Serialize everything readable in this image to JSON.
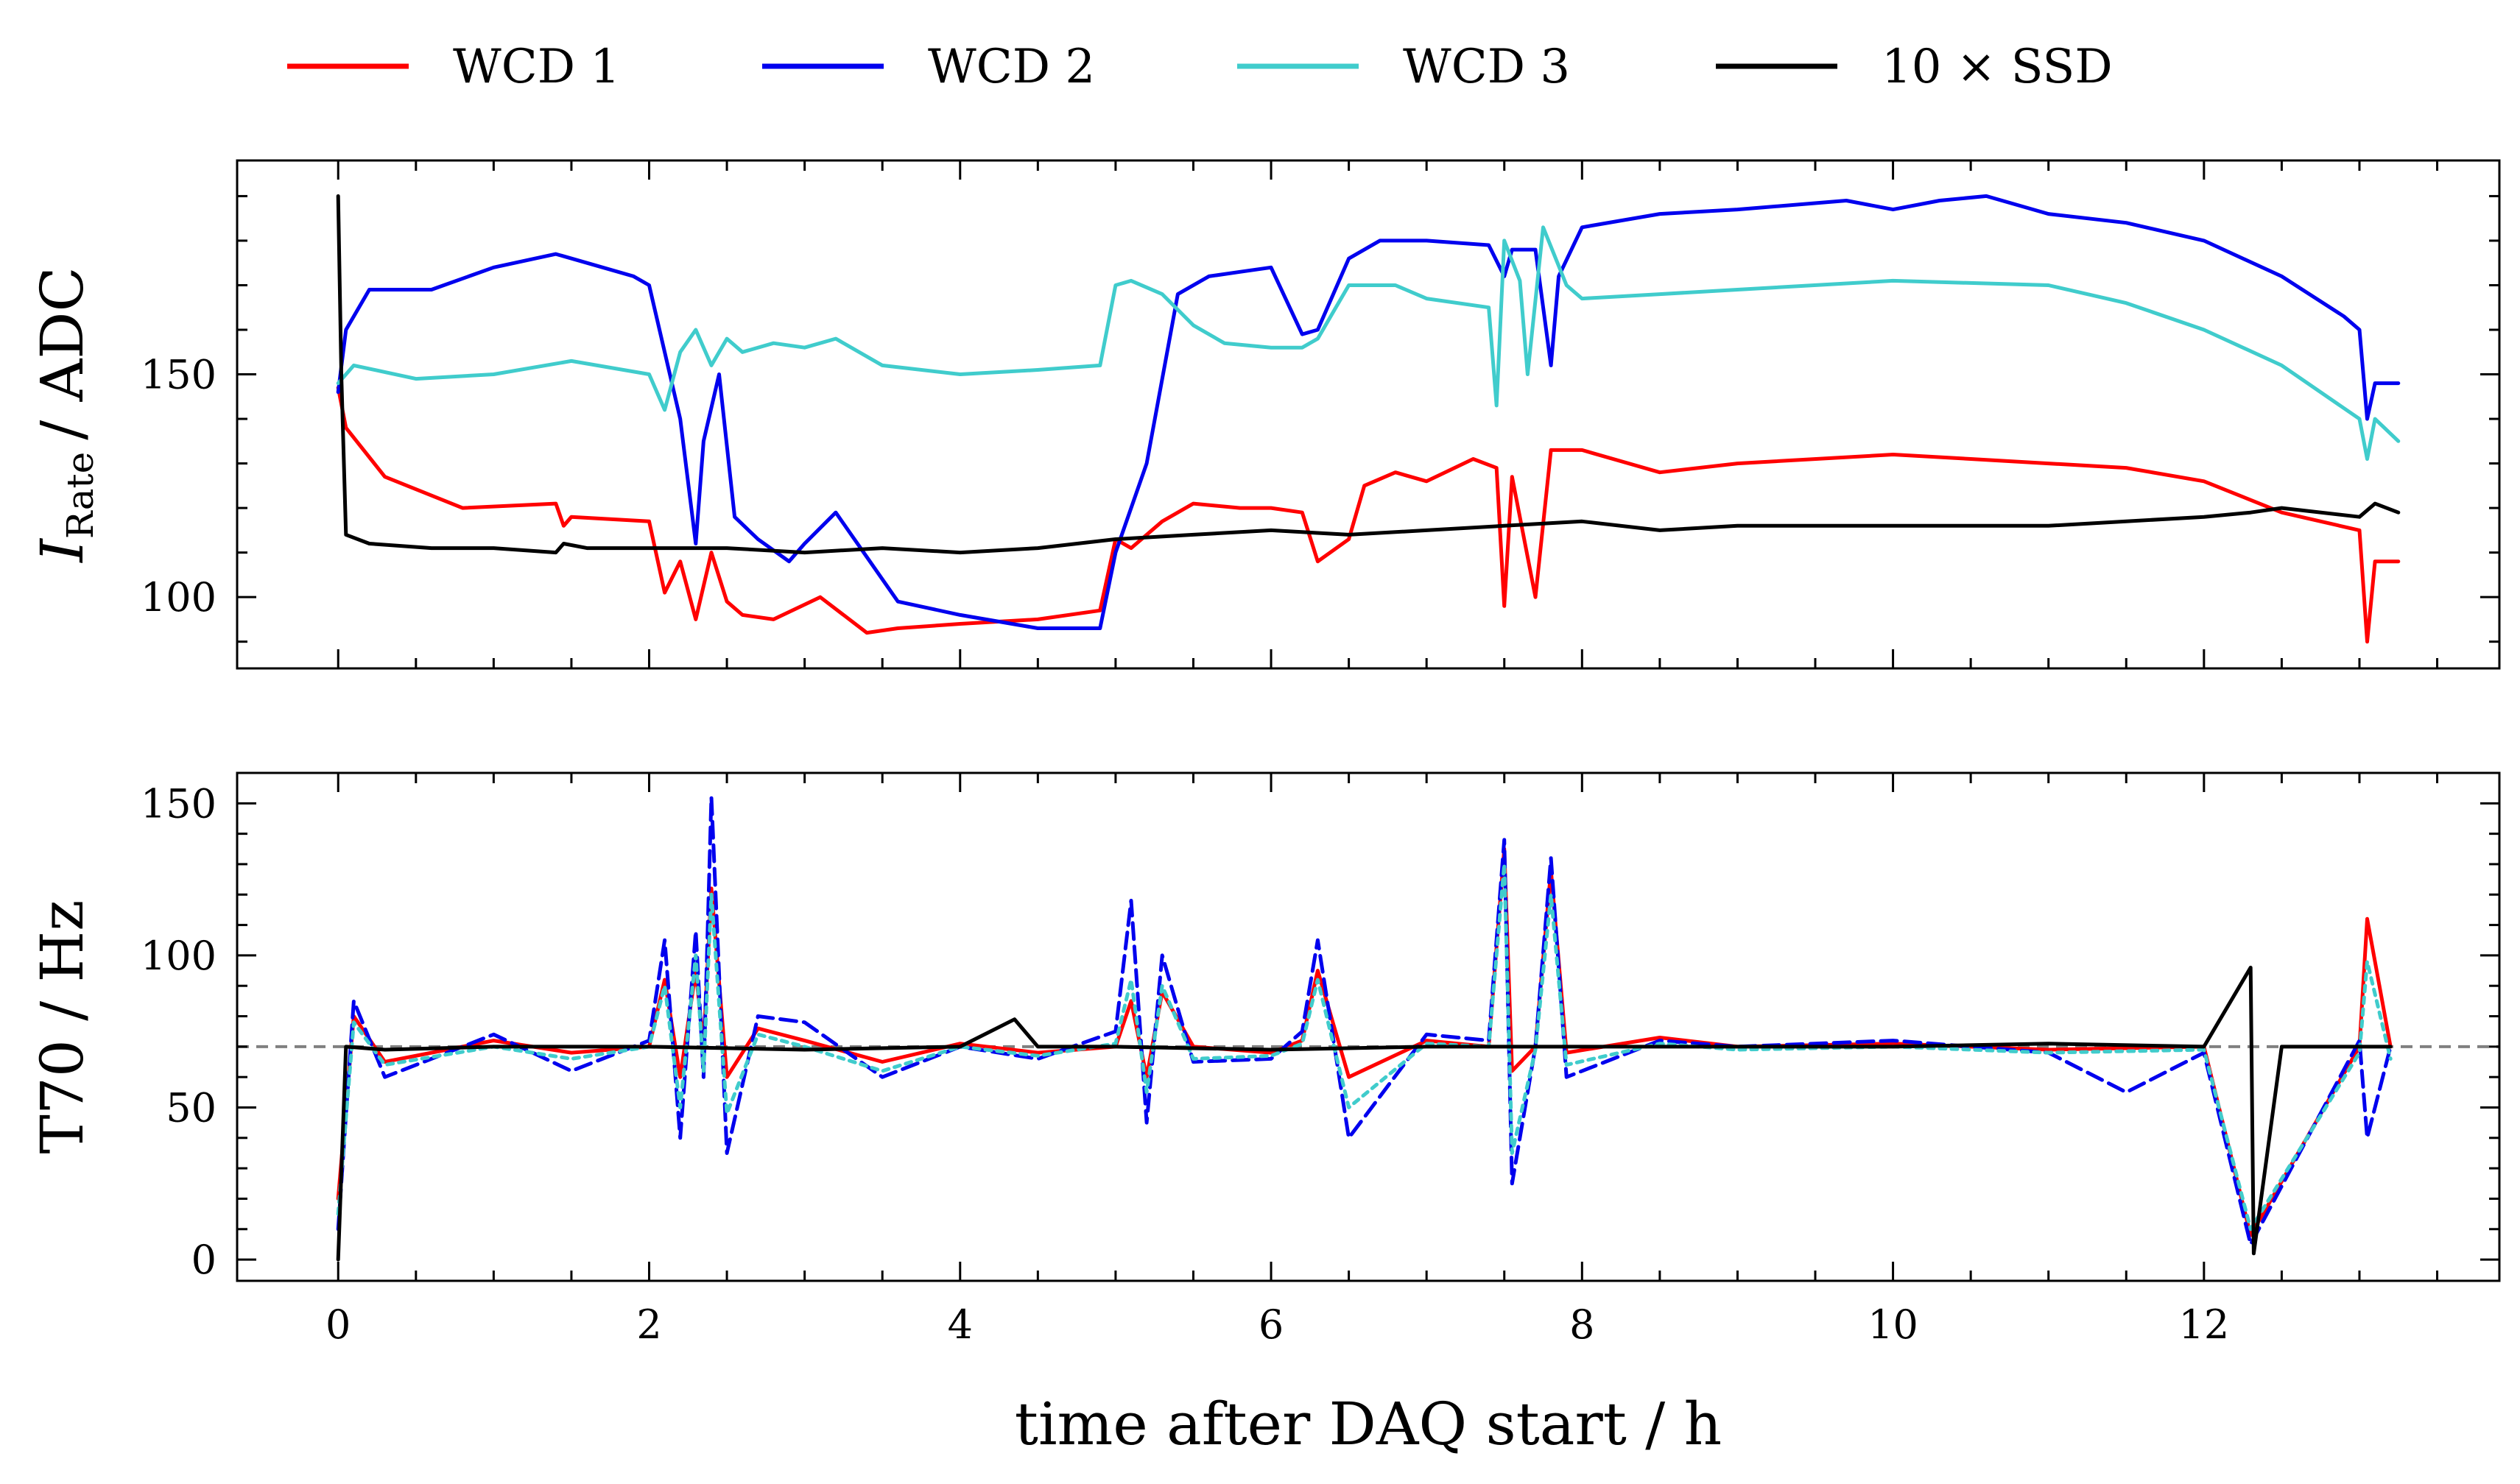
{
  "chart_data": [
    {
      "type": "line",
      "panel": "top",
      "xlabel": "",
      "ylabel_main": "I",
      "ylabel_sub": "Rate",
      "ylabel_unit": "/ ADC",
      "xlim": [
        -0.65,
        13.9
      ],
      "ylim": [
        84,
        198
      ],
      "xticks": [
        0,
        2,
        4,
        6,
        8,
        10,
        12
      ],
      "yticks": [
        100,
        150
      ],
      "grid": false,
      "legend_position": "top",
      "series": [
        {
          "name": "WCD 1",
          "color": "#ff0000",
          "x": [
            0,
            0.05,
            0.3,
            0.8,
            1.4,
            1.45,
            1.5,
            2.0,
            2.1,
            2.2,
            2.3,
            2.4,
            2.5,
            2.6,
            2.8,
            3.1,
            3.4,
            3.6,
            4.0,
            4.5,
            4.9,
            5.0,
            5.1,
            5.3,
            5.5,
            5.8,
            6.0,
            6.2,
            6.3,
            6.5,
            6.6,
            6.8,
            7.0,
            7.3,
            7.45,
            7.5,
            7.55,
            7.7,
            7.8,
            8.0,
            8.5,
            9.0,
            10.0,
            10.5,
            11.0,
            11.5,
            12.0,
            12.5,
            13.0,
            13.05,
            13.1,
            13.25
          ],
          "y": [
            147,
            138,
            127,
            120,
            121,
            116,
            118,
            117,
            101,
            108,
            95,
            110,
            99,
            96,
            95,
            100,
            92,
            93,
            94,
            95,
            97,
            113,
            111,
            117,
            121,
            120,
            120,
            119,
            108,
            113,
            125,
            128,
            126,
            131,
            129,
            98,
            127,
            100,
            133,
            133,
            128,
            130,
            132,
            131,
            130,
            129,
            126,
            119,
            115,
            90,
            108,
            108
          ]
        },
        {
          "name": "WCD 2",
          "color": "#0000ee",
          "x": [
            0,
            0.05,
            0.2,
            0.6,
            1.0,
            1.4,
            1.6,
            1.9,
            2.0,
            2.1,
            2.2,
            2.3,
            2.35,
            2.45,
            2.55,
            2.7,
            2.9,
            3.0,
            3.2,
            3.4,
            3.6,
            4.0,
            4.5,
            4.9,
            5.0,
            5.2,
            5.4,
            5.6,
            5.8,
            6.0,
            6.2,
            6.3,
            6.5,
            6.7,
            7.0,
            7.4,
            7.5,
            7.55,
            7.7,
            7.8,
            7.85,
            8.0,
            8.5,
            9.0,
            9.7,
            10.0,
            10.3,
            10.6,
            11.0,
            11.5,
            12.0,
            12.5,
            12.9,
            13.0,
            13.05,
            13.1,
            13.25
          ],
          "y": [
            146,
            160,
            169,
            169,
            174,
            177,
            175,
            172,
            170,
            155,
            140,
            112,
            135,
            150,
            118,
            113,
            108,
            112,
            119,
            109,
            99,
            96,
            93,
            93,
            110,
            130,
            168,
            172,
            173,
            174,
            159,
            160,
            176,
            180,
            180,
            179,
            172,
            178,
            178,
            152,
            172,
            183,
            186,
            187,
            189,
            187,
            189,
            190,
            186,
            184,
            180,
            172,
            163,
            160,
            140,
            148,
            148
          ]
        },
        {
          "name": "WCD 3",
          "color": "#40cccc",
          "x": [
            0,
            0.1,
            0.5,
            1.0,
            1.5,
            2.0,
            2.1,
            2.2,
            2.3,
            2.4,
            2.5,
            2.6,
            2.8,
            3.0,
            3.2,
            3.5,
            4.0,
            4.5,
            4.9,
            5.0,
            5.1,
            5.3,
            5.5,
            5.7,
            6.0,
            6.2,
            6.3,
            6.4,
            6.5,
            6.8,
            7.0,
            7.4,
            7.45,
            7.5,
            7.6,
            7.65,
            7.75,
            7.9,
            8.0,
            8.5,
            9.0,
            10.0,
            11.0,
            11.5,
            12.0,
            12.5,
            13.0,
            13.05,
            13.1,
            13.25
          ],
          "y": [
            148,
            152,
            149,
            150,
            153,
            150,
            142,
            155,
            160,
            152,
            158,
            155,
            157,
            156,
            158,
            152,
            150,
            151,
            152,
            170,
            171,
            168,
            161,
            157,
            156,
            156,
            158,
            164,
            170,
            170,
            167,
            165,
            143,
            180,
            171,
            150,
            183,
            170,
            167,
            168,
            169,
            171,
            170,
            166,
            160,
            152,
            140,
            131,
            140,
            135
          ]
        },
        {
          "name": "10 × SSD",
          "color": "#000000",
          "x": [
            0,
            0.02,
            0.05,
            0.2,
            0.6,
            1.0,
            1.4,
            1.45,
            1.6,
            2.0,
            2.5,
            3.0,
            3.5,
            4.0,
            4.5,
            5.0,
            5.5,
            6.0,
            6.5,
            7.0,
            7.5,
            8.0,
            8.5,
            9.0,
            10.0,
            11.0,
            12.0,
            12.3,
            12.5,
            13.0,
            13.1,
            13.25
          ],
          "y": [
            190,
            150,
            114,
            112,
            111,
            111,
            110,
            112,
            111,
            111,
            111,
            110,
            111,
            110,
            111,
            113,
            114,
            115,
            114,
            115,
            116,
            117,
            115,
            116,
            116,
            116,
            118,
            119,
            120,
            118,
            121,
            119
          ]
        }
      ]
    },
    {
      "type": "line",
      "panel": "bottom",
      "xlabel": "time after DAQ start / h",
      "ylabel": "T70 / Hz",
      "xlim": [
        -0.65,
        13.9
      ],
      "ylim": [
        -7,
        160
      ],
      "xticks": [
        0,
        2,
        4,
        6,
        8,
        10,
        12
      ],
      "yticks": [
        0,
        50,
        100,
        150
      ],
      "reference_line": {
        "y": 70,
        "color": "#808080",
        "style": "dashed"
      },
      "grid": false,
      "series": [
        {
          "name": "WCD 1",
          "color": "#ff0000",
          "x": [
            0,
            0.1,
            0.3,
            1.0,
            1.5,
            2.0,
            2.1,
            2.2,
            2.3,
            2.35,
            2.4,
            2.5,
            2.7,
            3.0,
            3.5,
            4.0,
            4.5,
            5.0,
            5.1,
            5.2,
            5.3,
            5.5,
            6.0,
            6.2,
            6.3,
            6.5,
            7.0,
            7.4,
            7.5,
            7.55,
            7.7,
            7.8,
            7.9,
            8.5,
            9.0,
            10.0,
            11.0,
            12.0,
            12.3,
            13.0,
            13.05,
            13.2
          ],
          "y": [
            20,
            80,
            65,
            72,
            68,
            70,
            92,
            60,
            95,
            70,
            122,
            60,
            76,
            72,
            65,
            71,
            68,
            70,
            85,
            60,
            88,
            70,
            68,
            72,
            95,
            60,
            72,
            70,
            135,
            62,
            70,
            128,
            68,
            73,
            70,
            71,
            69,
            70,
            8,
            70,
            112,
            70
          ]
        },
        {
          "name": "WCD 2",
          "color": "#0000ee",
          "x": [
            0,
            0.1,
            0.3,
            1.0,
            1.5,
            2.0,
            2.1,
            2.2,
            2.3,
            2.35,
            2.4,
            2.5,
            2.7,
            3.0,
            3.5,
            4.0,
            4.5,
            5.0,
            5.1,
            5.2,
            5.3,
            5.5,
            6.0,
            6.2,
            6.3,
            6.5,
            7.0,
            7.4,
            7.5,
            7.55,
            7.7,
            7.8,
            7.9,
            8.5,
            9.0,
            10.0,
            11.0,
            11.5,
            12.0,
            12.3,
            13.0,
            13.05,
            13.2
          ],
          "y": [
            10,
            85,
            60,
            74,
            62,
            72,
            105,
            40,
            108,
            60,
            152,
            35,
            80,
            78,
            60,
            70,
            66,
            75,
            118,
            45,
            100,
            65,
            66,
            75,
            105,
            40,
            74,
            72,
            138,
            25,
            70,
            132,
            60,
            72,
            70,
            72,
            68,
            55,
            68,
            5,
            72,
            40,
            70
          ]
        },
        {
          "name": "WCD 3",
          "color": "#40cccc",
          "x": [
            0,
            0.1,
            0.3,
            1.0,
            1.5,
            2.0,
            2.1,
            2.2,
            2.3,
            2.35,
            2.4,
            2.5,
            2.7,
            3.0,
            3.5,
            4.0,
            4.5,
            5.0,
            5.1,
            5.2,
            5.3,
            5.5,
            6.0,
            6.2,
            6.3,
            6.5,
            7.0,
            7.4,
            7.5,
            7.55,
            7.7,
            7.8,
            7.9,
            8.5,
            9.0,
            10.0,
            11.0,
            12.0,
            12.3,
            13.0,
            13.05,
            13.2
          ],
          "y": [
            15,
            78,
            64,
            70,
            66,
            70,
            90,
            50,
            100,
            62,
            120,
            48,
            74,
            70,
            62,
            70,
            67,
            71,
            92,
            55,
            90,
            66,
            67,
            71,
            92,
            50,
            71,
            70,
            130,
            35,
            69,
            120,
            64,
            71,
            69,
            70,
            68,
            69,
            10,
            68,
            98,
            66
          ]
        },
        {
          "name": "10 × SSD",
          "color": "#000000",
          "x": [
            0,
            0.05,
            0.3,
            1.0,
            2.0,
            3.0,
            4.0,
            4.35,
            4.5,
            5.0,
            6.0,
            7.0,
            8.0,
            9.0,
            10.0,
            11.0,
            12.0,
            12.3,
            12.32,
            12.5,
            13.0,
            13.2
          ],
          "y": [
            0,
            70,
            69,
            70,
            70,
            69,
            70,
            79,
            70,
            70,
            69,
            70,
            70,
            70,
            70,
            71,
            70,
            96,
            2,
            70,
            70,
            70
          ]
        }
      ]
    }
  ]
}
